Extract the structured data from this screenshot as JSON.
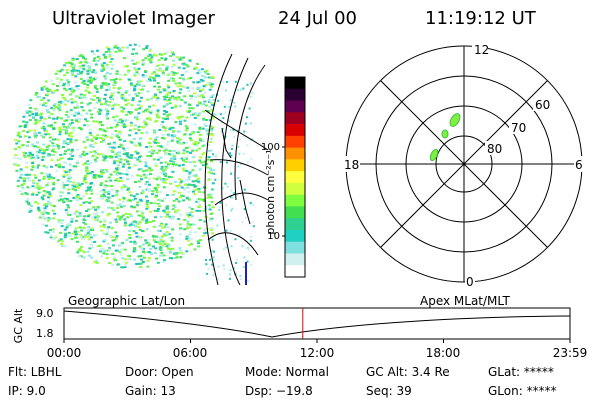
{
  "header": {
    "title": "Ultraviolet Imager",
    "date": "24 Jul 00",
    "time": "11:19:12 UT"
  },
  "colorbar": {
    "unit_text": "photon cm⁻²s⁻¹",
    "ticks": [
      "100",
      "10"
    ],
    "colors": [
      "#000000",
      "#2a0033",
      "#600050",
      "#a00020",
      "#d80000",
      "#ff4000",
      "#ff9000",
      "#ffd000",
      "#ffff40",
      "#d0ff40",
      "#80ff40",
      "#40e050",
      "#30d090",
      "#20d0c0",
      "#80e0e0",
      "#d0f0f0",
      "#ffffff"
    ]
  },
  "polar_plot": {
    "mlt_labels": {
      "top": "12",
      "bottom": "0",
      "left": "18",
      "right": "6"
    },
    "lat_labels": [
      "60",
      "70",
      "80"
    ]
  },
  "timeline": {
    "y_axis_label": "GC Alt",
    "y_ticks": [
      "9.0",
      "1.8"
    ],
    "left_caption": "Geographic Lat/Lon",
    "right_caption": "Apex MLat/MLT",
    "x_ticks": [
      "00:00",
      "06:00",
      "12:00",
      "18:00",
      "23:59"
    ],
    "current_time_fraction": 0.472
  },
  "footer": {
    "flt": "Flt: LBHL",
    "ip": "IP:  9.0",
    "door": "Door: Open",
    "gain": "Gain: 13",
    "mode": "Mode: Normal",
    "dsp": "Dsp:   −19.8",
    "gc_alt": "GC Alt: 3.4 Re",
    "seq": "Seq: 39",
    "glat": "GLat: *****",
    "glon": "GLon: *****"
  }
}
